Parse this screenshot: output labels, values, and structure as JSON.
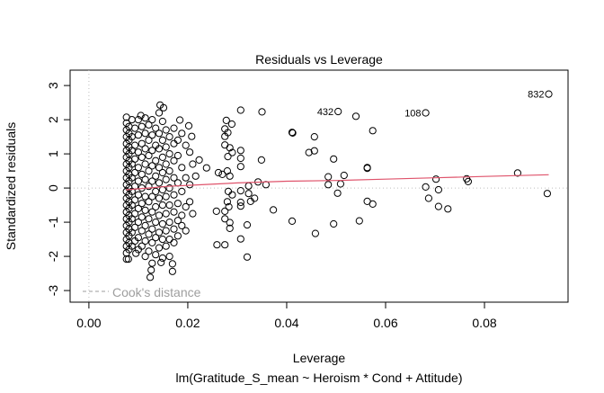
{
  "chart_data": {
    "type": "scatter",
    "title": "Residuals vs Leverage",
    "xlabel": "Leverage",
    "ylabel": "Standardized residuals",
    "subtitle": "lm(Gratitude_S_mean ~ Heroism * Cond + Attitude)",
    "xlim": [
      -0.0038,
      0.0969
    ],
    "ylim": [
      -3.34,
      3.45
    ],
    "x_ticks": [
      "0.00",
      "0.02",
      "0.04",
      "0.06",
      "0.08"
    ],
    "x_tick_values": [
      0,
      0.02,
      0.04,
      0.06,
      0.08
    ],
    "y_ticks": [
      "-3",
      "-2",
      "-1",
      "0",
      "1",
      "2",
      "3"
    ],
    "y_tick_values": [
      -3,
      -2,
      -1,
      0,
      1,
      2,
      3
    ],
    "legend": {
      "label": "Cook's distance",
      "placement": "bottom-left"
    },
    "colors": {
      "points": "#000000",
      "smooth": "#df536b",
      "reference": "#bebebe"
    },
    "labeled_points": [
      {
        "label": "832",
        "x": 0.093,
        "y": 2.75
      },
      {
        "label": "432",
        "x": 0.0504,
        "y": 2.24
      },
      {
        "label": "108",
        "x": 0.0681,
        "y": 2.2
      }
    ],
    "smooth_line": [
      [
        0.0075,
        -0.05
      ],
      [
        0.012,
        0.0
      ],
      [
        0.016,
        0.05
      ],
      [
        0.02,
        0.08
      ],
      [
        0.03,
        0.15
      ],
      [
        0.04,
        0.2
      ],
      [
        0.05,
        0.22
      ],
      [
        0.06,
        0.26
      ],
      [
        0.07,
        0.3
      ],
      [
        0.08,
        0.34
      ],
      [
        0.093,
        0.39
      ]
    ],
    "points": [
      [
        0.0307,
        2.28
      ],
      [
        0.035,
        2.23
      ],
      [
        0.054,
        2.1
      ],
      [
        0.0411,
        1.63
      ],
      [
        0.0412,
        1.61
      ],
      [
        0.0456,
        1.5
      ],
      [
        0.0574,
        1.68
      ],
      [
        0.0445,
        1.04
      ],
      [
        0.0456,
        1.09
      ],
      [
        0.0495,
        0.85
      ],
      [
        0.0563,
        0.6
      ],
      [
        0.0563,
        0.58
      ],
      [
        0.0349,
        0.82
      ],
      [
        0.0484,
        0.33
      ],
      [
        0.0516,
        0.37
      ],
      [
        0.0484,
        0.1
      ],
      [
        0.0509,
        0.12
      ],
      [
        0.0503,
        -0.15
      ],
      [
        0.0563,
        -0.39
      ],
      [
        0.0574,
        -0.47
      ],
      [
        0.0411,
        -0.97
      ],
      [
        0.0495,
        -1.05
      ],
      [
        0.0547,
        -0.96
      ],
      [
        0.0458,
        -1.33
      ],
      [
        0.0681,
        0.03
      ],
      [
        0.0702,
        0.26
      ],
      [
        0.0687,
        -0.3
      ],
      [
        0.0707,
        -0.05
      ],
      [
        0.0707,
        -0.54
      ],
      [
        0.0726,
        -0.61
      ],
      [
        0.0764,
        0.27
      ],
      [
        0.0767,
        0.19
      ],
      [
        0.0867,
        0.44
      ],
      [
        0.0927,
        -0.16
      ],
      [
        0.0373,
        -0.64
      ],
      [
        0.0358,
        0.1
      ],
      [
        0.0342,
        0.18
      ],
      [
        0.0238,
        0.59
      ],
      [
        0.032,
        -1.08
      ],
      [
        0.0307,
        -1.49
      ],
      [
        0.032,
        -2.02
      ],
      [
        0.0259,
        -1.66
      ],
      [
        0.0275,
        -1.66
      ],
      [
        0.0335,
        -0.3
      ],
      [
        0.0327,
        -0.39
      ],
      [
        0.0307,
        -0.53
      ],
      [
        0.0307,
        -0.08
      ],
      [
        0.0307,
        -0.42
      ],
      [
        0.0307,
        0.63
      ],
      [
        0.0307,
        0.87
      ],
      [
        0.0307,
        1.1
      ],
      [
        0.029,
        1.04
      ],
      [
        0.0285,
        1.18
      ],
      [
        0.0281,
        0.92
      ],
      [
        0.0275,
        1.51
      ],
      [
        0.0281,
        1.62
      ],
      [
        0.0275,
        1.73
      ],
      [
        0.0289,
        1.87
      ],
      [
        0.0278,
        1.98
      ],
      [
        0.0275,
        1.26
      ],
      [
        0.0275,
        -0.68
      ],
      [
        0.0275,
        -0.9
      ],
      [
        0.0285,
        -1.01
      ],
      [
        0.0285,
        -1.18
      ],
      [
        0.0258,
        -0.68
      ],
      [
        0.0323,
        0.06
      ],
      [
        0.0323,
        -0.16
      ],
      [
        0.028,
        0.5
      ],
      [
        0.0282,
        -0.1
      ],
      [
        0.028,
        -0.4
      ],
      [
        0.027,
        0.4
      ],
      [
        0.0262,
        0.45
      ],
      [
        0.0285,
        0.35
      ],
      [
        0.029,
        -0.2
      ],
      [
        0.0283,
        -0.55
      ],
      [
        0.0223,
        0.82
      ],
      [
        0.0208,
        1.51
      ],
      [
        0.0202,
        1.82
      ],
      [
        0.0184,
        1.99
      ],
      [
        0.0144,
        2.43
      ],
      [
        0.0151,
        2.35
      ],
      [
        0.0105,
        2.12
      ],
      [
        0.0076,
        2.07
      ],
      [
        0.0076,
        -2.08
      ],
      [
        0.008,
        -2.08
      ],
      [
        0.0124,
        -2.61
      ],
      [
        0.0126,
        -2.4
      ],
      [
        0.0146,
        -2.18
      ],
      [
        0.0169,
        -2.44
      ],
      [
        0.0169,
        -2.22
      ],
      [
        0.0095,
        -1.91
      ],
      [
        0.0076,
        1.9
      ],
      [
        0.0076,
        1.7
      ],
      [
        0.0076,
        1.5
      ],
      [
        0.0076,
        1.3
      ],
      [
        0.0076,
        1.1
      ],
      [
        0.0076,
        0.9
      ],
      [
        0.0076,
        0.7
      ],
      [
        0.0076,
        0.5
      ],
      [
        0.0076,
        0.3
      ],
      [
        0.0076,
        0.1
      ],
      [
        0.0076,
        -0.1
      ],
      [
        0.0076,
        -0.3
      ],
      [
        0.0076,
        -0.5
      ],
      [
        0.0076,
        -0.7
      ],
      [
        0.0076,
        -0.9
      ],
      [
        0.0076,
        -1.1
      ],
      [
        0.0076,
        -1.3
      ],
      [
        0.0076,
        -1.5
      ],
      [
        0.0076,
        -1.7
      ],
      [
        0.0076,
        -1.9
      ],
      [
        0.0081,
        1.8
      ],
      [
        0.0081,
        1.6
      ],
      [
        0.0081,
        1.4
      ],
      [
        0.0081,
        1.2
      ],
      [
        0.0081,
        1.0
      ],
      [
        0.0081,
        0.8
      ],
      [
        0.0081,
        0.6
      ],
      [
        0.0081,
        0.4
      ],
      [
        0.0081,
        0.2
      ],
      [
        0.0081,
        0.0
      ],
      [
        0.0081,
        -0.2
      ],
      [
        0.0081,
        -0.4
      ],
      [
        0.0081,
        -0.6
      ],
      [
        0.0081,
        -0.8
      ],
      [
        0.0081,
        -1.0
      ],
      [
        0.0081,
        -1.2
      ],
      [
        0.0081,
        -1.4
      ],
      [
        0.0081,
        -1.6
      ],
      [
        0.0081,
        -1.8
      ],
      [
        0.0087,
        2.0
      ],
      [
        0.0087,
        1.5
      ],
      [
        0.0087,
        1.1
      ],
      [
        0.0087,
        0.7
      ],
      [
        0.0087,
        0.3
      ],
      [
        0.0087,
        -0.1
      ],
      [
        0.0087,
        -0.5
      ],
      [
        0.0087,
        -0.9
      ],
      [
        0.0087,
        -1.3
      ],
      [
        0.0087,
        -1.7
      ],
      [
        0.0093,
        1.75
      ],
      [
        0.0093,
        1.25
      ],
      [
        0.0093,
        0.85
      ],
      [
        0.0093,
        0.45
      ],
      [
        0.0093,
        0.05
      ],
      [
        0.0093,
        -0.35
      ],
      [
        0.0093,
        -0.75
      ],
      [
        0.0093,
        -1.15
      ],
      [
        0.0093,
        -1.55
      ],
      [
        0.01,
        2.0
      ],
      [
        0.01,
        1.55
      ],
      [
        0.01,
        1.05
      ],
      [
        0.01,
        0.6
      ],
      [
        0.01,
        0.2
      ],
      [
        0.01,
        -0.2
      ],
      [
        0.01,
        -0.6
      ],
      [
        0.01,
        -1.0
      ],
      [
        0.01,
        -1.45
      ],
      [
        0.01,
        -1.8
      ],
      [
        0.0107,
        1.8
      ],
      [
        0.0107,
        1.3
      ],
      [
        0.0107,
        0.9
      ],
      [
        0.0107,
        0.4
      ],
      [
        0.0107,
        0.0
      ],
      [
        0.0107,
        -0.45
      ],
      [
        0.0107,
        -0.85
      ],
      [
        0.0107,
        -1.25
      ],
      [
        0.0107,
        -1.7
      ],
      [
        0.0114,
        2.05
      ],
      [
        0.0114,
        1.6
      ],
      [
        0.0114,
        1.15
      ],
      [
        0.0114,
        0.7
      ],
      [
        0.0114,
        0.25
      ],
      [
        0.0114,
        -0.25
      ],
      [
        0.0114,
        -0.65
      ],
      [
        0.0114,
        -1.1
      ],
      [
        0.0114,
        -1.55
      ],
      [
        0.0114,
        -2.0
      ],
      [
        0.0121,
        1.85
      ],
      [
        0.0121,
        1.4
      ],
      [
        0.0121,
        0.95
      ],
      [
        0.0121,
        0.5
      ],
      [
        0.0121,
        0.05
      ],
      [
        0.0121,
        -0.4
      ],
      [
        0.0121,
        -0.9
      ],
      [
        0.0121,
        -1.35
      ],
      [
        0.0121,
        -1.85
      ],
      [
        0.0128,
        2.0
      ],
      [
        0.0128,
        1.55
      ],
      [
        0.0128,
        1.1
      ],
      [
        0.0128,
        0.65
      ],
      [
        0.0128,
        0.2
      ],
      [
        0.0128,
        -0.25
      ],
      [
        0.0128,
        -0.7
      ],
      [
        0.0128,
        -1.2
      ],
      [
        0.0128,
        -1.6
      ],
      [
        0.0128,
        -2.2
      ],
      [
        0.0135,
        1.75
      ],
      [
        0.0135,
        1.25
      ],
      [
        0.0135,
        0.8
      ],
      [
        0.0135,
        0.35
      ],
      [
        0.0135,
        -0.1
      ],
      [
        0.0135,
        -0.55
      ],
      [
        0.0135,
        -1.0
      ],
      [
        0.0135,
        -1.45
      ],
      [
        0.0135,
        -1.95
      ],
      [
        0.0142,
        2.2
      ],
      [
        0.0142,
        1.6
      ],
      [
        0.0142,
        1.15
      ],
      [
        0.0142,
        0.6
      ],
      [
        0.0142,
        0.15
      ],
      [
        0.0142,
        -0.3
      ],
      [
        0.0142,
        -0.8
      ],
      [
        0.0142,
        -1.3
      ],
      [
        0.0142,
        -1.75
      ],
      [
        0.0149,
        1.95
      ],
      [
        0.0149,
        1.4
      ],
      [
        0.0149,
        0.9
      ],
      [
        0.0149,
        0.45
      ],
      [
        0.0149,
        -0.05
      ],
      [
        0.0149,
        -0.5
      ],
      [
        0.0149,
        -1.05
      ],
      [
        0.0149,
        -1.5
      ],
      [
        0.0149,
        -2.05
      ],
      [
        0.0156,
        1.7
      ],
      [
        0.0156,
        1.2
      ],
      [
        0.0156,
        0.7
      ],
      [
        0.0156,
        0.25
      ],
      [
        0.0156,
        -0.25
      ],
      [
        0.0156,
        -0.75
      ],
      [
        0.0156,
        -1.25
      ],
      [
        0.0156,
        -1.7
      ],
      [
        0.0163,
        1.5
      ],
      [
        0.0163,
        1.0
      ],
      [
        0.0163,
        0.5
      ],
      [
        0.0163,
        0.0
      ],
      [
        0.0163,
        -0.5
      ],
      [
        0.0163,
        -1.0
      ],
      [
        0.0163,
        -1.5
      ],
      [
        0.0163,
        -2.0
      ],
      [
        0.0172,
        1.75
      ],
      [
        0.0172,
        1.3
      ],
      [
        0.0172,
        0.8
      ],
      [
        0.0172,
        0.3
      ],
      [
        0.0172,
        -0.2
      ],
      [
        0.0172,
        -0.7
      ],
      [
        0.0172,
        -1.2
      ],
      [
        0.0172,
        -1.6
      ],
      [
        0.018,
        1.4
      ],
      [
        0.018,
        0.95
      ],
      [
        0.018,
        0.15
      ],
      [
        0.018,
        -0.45
      ],
      [
        0.018,
        -0.95
      ],
      [
        0.018,
        -1.4
      ],
      [
        0.0188,
        1.6
      ],
      [
        0.0188,
        0.6
      ],
      [
        0.0188,
        -0.1
      ],
      [
        0.0188,
        -0.8
      ],
      [
        0.0188,
        -1.1
      ],
      [
        0.0196,
        1.25
      ],
      [
        0.0196,
        0.3
      ],
      [
        0.0196,
        -0.55
      ],
      [
        0.0196,
        -1.25
      ],
      [
        0.0204,
        1.05
      ],
      [
        0.0204,
        0.1
      ],
      [
        0.0204,
        -0.4
      ],
      [
        0.021,
        0.7
      ],
      [
        0.021,
        -0.75
      ],
      [
        0.0216,
        0.35
      ]
    ]
  }
}
